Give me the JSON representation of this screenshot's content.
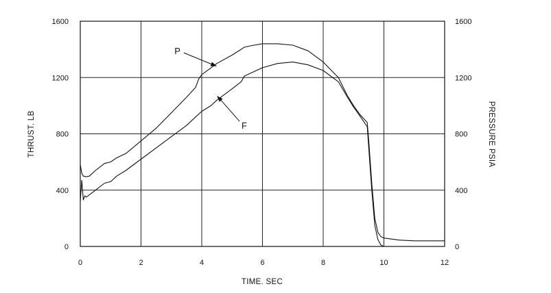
{
  "chart_data": {
    "type": "line",
    "xlabel": "TIME. SEC",
    "ylabel": "THRUST. LB",
    "y2label": "PRESSURE PSIA",
    "xlim": [
      0,
      12
    ],
    "ylim": [
      0,
      1600
    ],
    "y2lim": [
      0,
      1600
    ],
    "grid": true,
    "x_ticks": [
      "0",
      "2",
      "4",
      "6",
      "8",
      "10",
      "12"
    ],
    "y_ticks": [
      "0",
      "400",
      "800",
      "1200",
      "1600"
    ],
    "y2_ticks": [
      "0",
      "400",
      "800",
      "1200",
      "1600"
    ],
    "series": [
      {
        "name": "P",
        "x": [
          0.0,
          0.05,
          0.1,
          0.2,
          0.3,
          0.5,
          0.8,
          1.0,
          1.2,
          1.5,
          2.0,
          2.5,
          3.0,
          3.5,
          3.8,
          3.9,
          4.0,
          4.5,
          5.0,
          5.3,
          5.4,
          5.6,
          6.0,
          6.5,
          7.0,
          7.5,
          8.0,
          8.5,
          8.8,
          9.0,
          9.2,
          9.45,
          9.5,
          9.6,
          9.7,
          9.8,
          9.9,
          10.0,
          10.5,
          11.0,
          12.0
        ],
        "y": [
          580,
          520,
          500,
          495,
          500,
          540,
          590,
          600,
          630,
          660,
          750,
          840,
          950,
          1060,
          1130,
          1190,
          1220,
          1300,
          1360,
          1400,
          1415,
          1425,
          1440,
          1440,
          1430,
          1390,
          1310,
          1200,
          1070,
          1000,
          940,
          880,
          750,
          450,
          200,
          100,
          70,
          60,
          45,
          40,
          40
        ]
      },
      {
        "name": "F",
        "x": [
          0.0,
          0.05,
          0.1,
          0.15,
          0.2,
          0.5,
          0.8,
          1.0,
          1.2,
          1.5,
          2.0,
          2.5,
          3.0,
          3.5,
          3.8,
          4.0,
          4.3,
          4.5,
          5.0,
          5.3,
          5.4,
          5.6,
          6.0,
          6.5,
          7.0,
          7.5,
          8.0,
          8.5,
          8.8,
          9.0,
          9.2,
          9.45,
          9.5,
          9.6,
          9.7,
          9.8,
          9.9,
          10.0
        ],
        "y": [
          320,
          470,
          330,
          360,
          350,
          400,
          450,
          460,
          500,
          540,
          620,
          700,
          780,
          860,
          920,
          960,
          1000,
          1040,
          1120,
          1170,
          1210,
          1230,
          1270,
          1300,
          1310,
          1290,
          1250,
          1170,
          1060,
          990,
          930,
          850,
          700,
          400,
          150,
          50,
          10,
          0
        ]
      }
    ],
    "annotations": [
      {
        "text": "P",
        "x": 3.2,
        "y": 1390,
        "arrow_to_x": 4.5,
        "arrow_to_y": 1280
      },
      {
        "text": "F",
        "x": 5.4,
        "y": 860,
        "arrow_to_x": 4.5,
        "arrow_to_y": 1070
      }
    ]
  }
}
